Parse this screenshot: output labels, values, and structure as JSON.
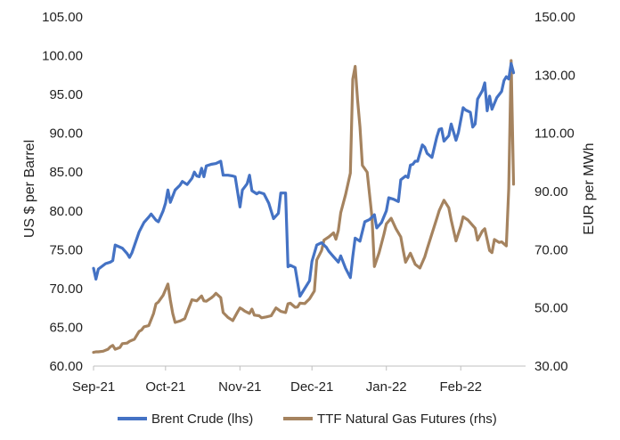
{
  "chart_data": {
    "type": "line",
    "title": "",
    "xlabel": "",
    "ylabel_left": "US $ per Barrel",
    "ylabel_right": "EUR per MWh",
    "ylim_left": [
      60,
      105
    ],
    "ylim_right": [
      30,
      150
    ],
    "xlim": [
      "2021-09-01",
      "2022-02-28"
    ],
    "x_ticks": [
      "2021-09-01",
      "2021-10-01",
      "2021-11-01",
      "2021-12-01",
      "2022-01-01",
      "2022-02-01"
    ],
    "x_tick_labels": [
      "Sep-21",
      "Oct-21",
      "Nov-21",
      "Dec-21",
      "Jan-22",
      "Feb-22"
    ],
    "y_left_ticks": [
      "60.00",
      "65.00",
      "70.00",
      "75.00",
      "80.00",
      "85.00",
      "90.00",
      "95.00",
      "100.00",
      "105.00"
    ],
    "y_right_ticks": [
      "30.00",
      "50.00",
      "70.00",
      "90.00",
      "110.00",
      "130.00",
      "150.00"
    ],
    "grid": false,
    "legend_position": "bottom",
    "series": [
      {
        "name": "Brent Crude (lhs)",
        "axis": "left",
        "color": "#4472C4",
        "points": [
          [
            "2021-09-01",
            72.6
          ],
          [
            "2021-09-02",
            71.2
          ],
          [
            "2021-09-03",
            72.5
          ],
          [
            "2021-09-06",
            73.2
          ],
          [
            "2021-09-08",
            73.4
          ],
          [
            "2021-09-09",
            73.6
          ],
          [
            "2021-09-10",
            75.6
          ],
          [
            "2021-09-13",
            75.2
          ],
          [
            "2021-09-15",
            74.5
          ],
          [
            "2021-09-16",
            74.0
          ],
          [
            "2021-09-17",
            74.6
          ],
          [
            "2021-09-20",
            77.3
          ],
          [
            "2021-09-22",
            78.5
          ],
          [
            "2021-09-24",
            79.2
          ],
          [
            "2021-09-25",
            79.6
          ],
          [
            "2021-09-27",
            78.8
          ],
          [
            "2021-09-28",
            78.6
          ],
          [
            "2021-09-30",
            80.0
          ],
          [
            "2021-10-01",
            81.0
          ],
          [
            "2021-10-02",
            82.7
          ],
          [
            "2021-10-03",
            81.1
          ],
          [
            "2021-10-05",
            82.7
          ],
          [
            "2021-10-07",
            83.3
          ],
          [
            "2021-10-08",
            83.8
          ],
          [
            "2021-10-10",
            83.4
          ],
          [
            "2021-10-12",
            84.2
          ],
          [
            "2021-10-13",
            85.0
          ],
          [
            "2021-10-14",
            84.5
          ],
          [
            "2021-10-15",
            84.4
          ],
          [
            "2021-10-16",
            85.5
          ],
          [
            "2021-10-17",
            84.4
          ],
          [
            "2021-10-18",
            85.8
          ],
          [
            "2021-10-20",
            86.0
          ],
          [
            "2021-10-22",
            86.1
          ],
          [
            "2021-10-24",
            86.4
          ],
          [
            "2021-10-25",
            84.6
          ],
          [
            "2021-10-27",
            84.6
          ],
          [
            "2021-10-29",
            84.5
          ],
          [
            "2021-10-30",
            84.4
          ],
          [
            "2021-11-01",
            80.5
          ],
          [
            "2021-11-02",
            82.7
          ],
          [
            "2021-11-03",
            83.1
          ],
          [
            "2021-11-04",
            83.5
          ],
          [
            "2021-11-05",
            84.6
          ],
          [
            "2021-11-06",
            82.6
          ],
          [
            "2021-11-08",
            82.2
          ],
          [
            "2021-11-09",
            82.4
          ],
          [
            "2021-11-11",
            82.2
          ],
          [
            "2021-11-13",
            81.0
          ],
          [
            "2021-11-15",
            79.0
          ],
          [
            "2021-11-17",
            79.7
          ],
          [
            "2021-11-18",
            82.3
          ],
          [
            "2021-11-20",
            82.3
          ],
          [
            "2021-11-21",
            72.8
          ],
          [
            "2021-11-22",
            73.0
          ],
          [
            "2021-11-24",
            72.7
          ],
          [
            "2021-11-26",
            69.0
          ],
          [
            "2021-11-28",
            70.0
          ],
          [
            "2021-11-30",
            71.0
          ],
          [
            "2021-12-01",
            73.5
          ],
          [
            "2021-12-03",
            75.6
          ],
          [
            "2021-12-05",
            75.9
          ],
          [
            "2021-12-07",
            75.3
          ],
          [
            "2021-12-08",
            74.8
          ],
          [
            "2021-12-10",
            74.1
          ],
          [
            "2021-12-12",
            73.4
          ],
          [
            "2021-12-13",
            74.2
          ],
          [
            "2021-12-15",
            72.6
          ],
          [
            "2021-12-17",
            71.4
          ],
          [
            "2021-12-18",
            74.1
          ],
          [
            "2021-12-19",
            76.5
          ],
          [
            "2021-12-21",
            76.1
          ],
          [
            "2021-12-23",
            78.6
          ],
          [
            "2021-12-25",
            78.9
          ],
          [
            "2021-12-27",
            79.5
          ],
          [
            "2021-12-28",
            77.8
          ],
          [
            "2021-12-30",
            78.5
          ],
          [
            "2022-01-01",
            80.0
          ],
          [
            "2022-01-02",
            81.7
          ],
          [
            "2022-01-04",
            81.5
          ],
          [
            "2022-01-06",
            81.2
          ],
          [
            "2022-01-07",
            84.0
          ],
          [
            "2022-01-09",
            84.5
          ],
          [
            "2022-01-10",
            84.3
          ],
          [
            "2022-01-11",
            85.9
          ],
          [
            "2022-01-12",
            86.0
          ],
          [
            "2022-01-13",
            86.4
          ],
          [
            "2022-01-14",
            86.4
          ],
          [
            "2022-01-16",
            88.5
          ],
          [
            "2022-01-17",
            88.2
          ],
          [
            "2022-01-18",
            87.4
          ],
          [
            "2022-01-20",
            86.9
          ],
          [
            "2022-01-22",
            89.5
          ],
          [
            "2022-01-23",
            90.5
          ],
          [
            "2022-01-24",
            90.6
          ],
          [
            "2022-01-25",
            89.0
          ],
          [
            "2022-01-27",
            89.7
          ],
          [
            "2022-01-28",
            91.2
          ],
          [
            "2022-01-30",
            89.1
          ],
          [
            "2022-01-31",
            90.1
          ],
          [
            "2022-02-02",
            93.3
          ],
          [
            "2022-02-03",
            93.0
          ],
          [
            "2022-02-05",
            92.7
          ],
          [
            "2022-02-06",
            90.8
          ],
          [
            "2022-02-07",
            91.2
          ],
          [
            "2022-02-08",
            94.4
          ],
          [
            "2022-02-10",
            95.5
          ],
          [
            "2022-02-11",
            96.5
          ],
          [
            "2022-02-12",
            92.9
          ],
          [
            "2022-02-13",
            94.8
          ],
          [
            "2022-02-14",
            93.1
          ],
          [
            "2022-02-16",
            94.6
          ],
          [
            "2022-02-18",
            95.4
          ],
          [
            "2022-02-19",
            96.8
          ],
          [
            "2022-02-20",
            97.3
          ],
          [
            "2022-02-21",
            97.0
          ],
          [
            "2022-02-22",
            99.0
          ],
          [
            "2022-02-23",
            97.8
          ]
        ]
      },
      {
        "name": "TTF Natural Gas Futures (rhs)",
        "axis": "right",
        "color": "#A5835F",
        "points": [
          [
            "2021-09-01",
            34.7
          ],
          [
            "2021-09-02",
            34.9
          ],
          [
            "2021-09-03",
            34.9
          ],
          [
            "2021-09-05",
            35.1
          ],
          [
            "2021-09-07",
            35.8
          ],
          [
            "2021-09-08",
            36.6
          ],
          [
            "2021-09-09",
            37.1
          ],
          [
            "2021-09-10",
            35.8
          ],
          [
            "2021-09-12",
            36.4
          ],
          [
            "2021-09-13",
            37.7
          ],
          [
            "2021-09-15",
            37.9
          ],
          [
            "2021-09-16",
            38.5
          ],
          [
            "2021-09-18",
            39.2
          ],
          [
            "2021-09-20",
            41.9
          ],
          [
            "2021-09-21",
            42.4
          ],
          [
            "2021-09-22",
            43.5
          ],
          [
            "2021-09-24",
            43.9
          ],
          [
            "2021-09-26",
            48.1
          ],
          [
            "2021-09-27",
            51.4
          ],
          [
            "2021-09-28",
            52.0
          ],
          [
            "2021-09-30",
            54.3
          ],
          [
            "2021-10-02",
            58.2
          ],
          [
            "2021-10-03",
            52.7
          ],
          [
            "2021-10-04",
            48.1
          ],
          [
            "2021-10-05",
            45.0
          ],
          [
            "2021-10-07",
            45.5
          ],
          [
            "2021-10-09",
            46.3
          ],
          [
            "2021-10-10",
            48.5
          ],
          [
            "2021-10-12",
            52.8
          ],
          [
            "2021-10-14",
            52.4
          ],
          [
            "2021-10-16",
            54.1
          ],
          [
            "2021-10-17",
            52.4
          ],
          [
            "2021-10-18",
            52.3
          ],
          [
            "2021-10-20",
            53.4
          ],
          [
            "2021-10-21",
            54.1
          ],
          [
            "2021-10-22",
            55.0
          ],
          [
            "2021-10-24",
            53.5
          ],
          [
            "2021-10-25",
            48.4
          ],
          [
            "2021-10-27",
            46.7
          ],
          [
            "2021-10-28",
            46.2
          ],
          [
            "2021-10-29",
            45.6
          ],
          [
            "2021-10-31",
            48.6
          ],
          [
            "2021-11-01",
            50.0
          ],
          [
            "2021-11-02",
            49.5
          ],
          [
            "2021-11-03",
            48.9
          ],
          [
            "2021-11-05",
            48.1
          ],
          [
            "2021-11-06",
            49.6
          ],
          [
            "2021-11-07",
            47.5
          ],
          [
            "2021-11-09",
            47.3
          ],
          [
            "2021-11-10",
            46.6
          ],
          [
            "2021-11-12",
            46.9
          ],
          [
            "2021-11-14",
            47.3
          ],
          [
            "2021-11-16",
            50.0
          ],
          [
            "2021-11-18",
            48.8
          ],
          [
            "2021-11-20",
            48.4
          ],
          [
            "2021-11-21",
            51.4
          ],
          [
            "2021-11-22",
            51.6
          ],
          [
            "2021-11-24",
            50.2
          ],
          [
            "2021-11-25",
            50.3
          ],
          [
            "2021-11-26",
            51.6
          ],
          [
            "2021-11-28",
            51.5
          ],
          [
            "2021-11-30",
            53.1
          ],
          [
            "2021-12-02",
            55.8
          ],
          [
            "2021-12-03",
            66.5
          ],
          [
            "2021-12-05",
            69.7
          ],
          [
            "2021-12-06",
            73.3
          ],
          [
            "2021-12-08",
            74.4
          ],
          [
            "2021-12-10",
            75.8
          ],
          [
            "2021-12-11",
            73.6
          ],
          [
            "2021-12-12",
            76.6
          ],
          [
            "2021-12-13",
            82.7
          ],
          [
            "2021-12-15",
            88.9
          ],
          [
            "2021-12-16",
            92.6
          ],
          [
            "2021-12-17",
            96.3
          ],
          [
            "2021-12-18",
            128.6
          ],
          [
            "2021-12-19",
            133.0
          ],
          [
            "2021-12-20",
            121.5
          ],
          [
            "2021-12-21",
            112.2
          ],
          [
            "2021-12-22",
            99.0
          ],
          [
            "2021-12-24",
            96.6
          ],
          [
            "2021-12-26",
            81.1
          ],
          [
            "2021-12-27",
            64.2
          ],
          [
            "2021-12-29",
            69.0
          ],
          [
            "2021-12-31",
            75.3
          ],
          [
            "2022-01-01",
            78.9
          ],
          [
            "2022-01-03",
            80.8
          ],
          [
            "2022-01-05",
            77.2
          ],
          [
            "2022-01-07",
            74.4
          ],
          [
            "2022-01-08",
            69.8
          ],
          [
            "2022-01-09",
            65.7
          ],
          [
            "2022-01-11",
            68.8
          ],
          [
            "2022-01-13",
            65.0
          ],
          [
            "2022-01-15",
            63.7
          ],
          [
            "2022-01-17",
            67.5
          ],
          [
            "2022-01-18",
            70.3
          ],
          [
            "2022-01-20",
            75.5
          ],
          [
            "2022-01-22",
            80.7
          ],
          [
            "2022-01-23",
            83.4
          ],
          [
            "2022-01-25",
            87.0
          ],
          [
            "2022-01-27",
            84.4
          ],
          [
            "2022-01-28",
            80.2
          ],
          [
            "2022-01-30",
            73.0
          ],
          [
            "2022-02-01",
            78.1
          ],
          [
            "2022-02-02",
            81.3
          ],
          [
            "2022-02-04",
            80.2
          ],
          [
            "2022-02-06",
            78.3
          ],
          [
            "2022-02-07",
            77.4
          ],
          [
            "2022-02-08",
            73.3
          ],
          [
            "2022-02-10",
            76.4
          ],
          [
            "2022-02-11",
            77.2
          ],
          [
            "2022-02-13",
            69.7
          ],
          [
            "2022-02-14",
            69.0
          ],
          [
            "2022-02-15",
            73.5
          ],
          [
            "2022-02-17",
            72.5
          ],
          [
            "2022-02-18",
            72.7
          ],
          [
            "2022-02-20",
            71.3
          ],
          [
            "2022-02-21",
            91.0
          ],
          [
            "2022-02-22",
            135.0
          ],
          [
            "2022-02-23",
            92.5
          ]
        ]
      }
    ]
  }
}
